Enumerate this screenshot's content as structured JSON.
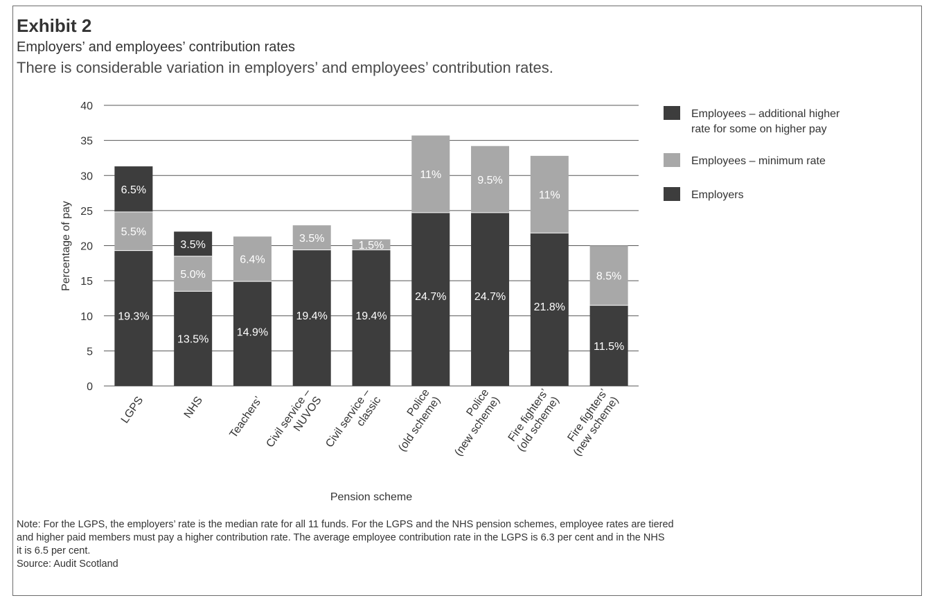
{
  "header": {
    "exhibit": "Exhibit 2",
    "title": "Employers’ and employees’ contribution rates",
    "subtitle": "There is considerable variation in employers’ and employees’ contribution rates."
  },
  "chart_data": {
    "type": "bar",
    "stacked": true,
    "xlabel": "Pension scheme",
    "ylabel": "Percentage of pay",
    "ylim": [
      0,
      40
    ],
    "yticks": [
      0,
      5,
      10,
      15,
      20,
      25,
      30,
      35,
      40
    ],
    "grid": true,
    "legend_position": "right",
    "categories": [
      [
        "LGPS"
      ],
      [
        "NHS"
      ],
      [
        "Teachers’"
      ],
      [
        "Civil service –",
        "NUVOS"
      ],
      [
        "Civil service –",
        "classic"
      ],
      [
        "Police",
        "(old scheme)"
      ],
      [
        "Police",
        "(new scheme)"
      ],
      [
        "Fire fighters’",
        "(old scheme)"
      ],
      [
        "Fire fighters’",
        "(new scheme)"
      ]
    ],
    "series": [
      {
        "name": "Employers",
        "color": "#3d3d3d",
        "values": [
          19.3,
          13.5,
          14.9,
          19.4,
          19.4,
          24.7,
          24.7,
          21.8,
          11.5
        ],
        "labels": [
          "19.3%",
          "13.5%",
          "14.9%",
          "19.4%",
          "19.4%",
          "24.7%",
          "24.7%",
          "21.8%",
          "11.5%"
        ]
      },
      {
        "name": "Employees – minimum rate",
        "color": "#a8a8a8",
        "values": [
          5.5,
          5.0,
          6.4,
          3.5,
          1.5,
          11,
          9.5,
          11,
          8.5
        ],
        "labels": [
          "5.5%",
          "5.0%",
          "6.4%",
          "3.5%",
          "1.5%",
          "11%",
          "9.5%",
          "11%",
          "8.5%"
        ]
      },
      {
        "name": "Employees – additional higher rate for some on higher pay",
        "color": "#3d3d3d",
        "values": [
          6.5,
          3.5,
          0,
          0,
          0,
          0,
          0,
          0,
          0
        ],
        "labels": [
          "6.5%",
          "3.5%",
          "",
          "",
          "",
          "",
          "",
          "",
          ""
        ]
      }
    ],
    "legend": [
      {
        "lines": [
          "Employees – additional higher",
          "rate for some on higher pay"
        ],
        "color": "#3d3d3d"
      },
      {
        "lines": [
          "Employees – minimum rate"
        ],
        "color": "#a8a8a8"
      },
      {
        "lines": [
          "Employers"
        ],
        "color": "#3d3d3d"
      }
    ]
  },
  "footer": {
    "note": [
      "Note: For the LGPS, the employers’ rate is the median rate for all 11 funds. For the LGPS and the NHS pension schemes, employee rates are tiered",
      "and higher paid members must pay a higher contribution rate. The average employee contribution rate in the LGPS is 6.3 per cent and in the NHS",
      "it is 6.5 per cent."
    ],
    "source": "Source: Audit Scotland"
  }
}
